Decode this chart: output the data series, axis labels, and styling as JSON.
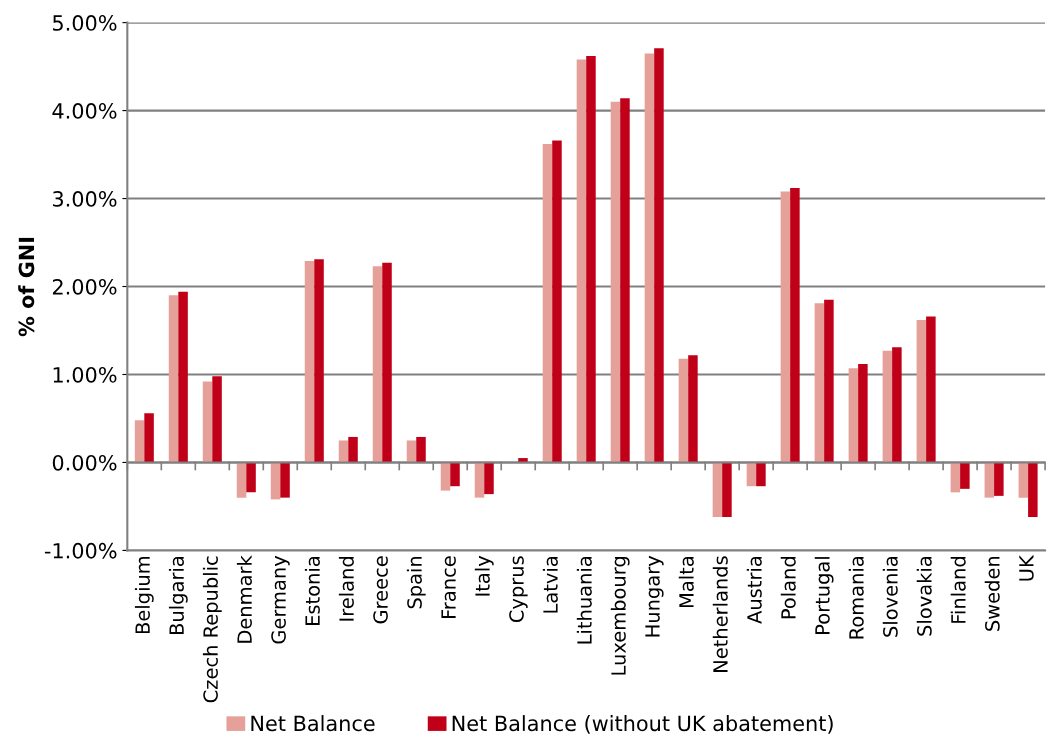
{
  "chart_data": {
    "type": "bar",
    "ylabel": "% of GNI",
    "categories": [
      "Belgium",
      "Bulgaria",
      "Czech Republic",
      "Denmark",
      "Germany",
      "Estonia",
      "Ireland",
      "Greece",
      "Spain",
      "France",
      "Italy",
      "Cyprus",
      "Latvia",
      "Lithuania",
      "Luxembourg",
      "Hungary",
      "Malta",
      "Netherlands",
      "Austria",
      "Poland",
      "Portugal",
      "Romania",
      "Slovenia",
      "Slovakia",
      "Finland",
      "Sweden",
      "UK"
    ],
    "series": [
      {
        "name": "Net Balance",
        "color": "#e6a09a",
        "values": [
          0.48,
          1.9,
          0.92,
          -0.4,
          -0.42,
          2.29,
          0.25,
          2.23,
          0.25,
          -0.32,
          -0.4,
          0.0,
          3.62,
          4.58,
          4.1,
          4.65,
          1.18,
          -0.62,
          -0.27,
          3.08,
          1.81,
          1.07,
          1.27,
          1.62,
          -0.34,
          -0.4,
          -0.4
        ]
      },
      {
        "name": "Net Balance (without UK abatement)",
        "color": "#c00018",
        "values": [
          0.56,
          1.94,
          0.98,
          -0.34,
          -0.4,
          2.31,
          0.29,
          2.27,
          0.29,
          -0.27,
          -0.36,
          0.05,
          3.66,
          4.62,
          4.14,
          4.71,
          1.22,
          -0.62,
          -0.27,
          3.12,
          1.85,
          1.12,
          1.31,
          1.66,
          -0.3,
          -0.38,
          -0.62
        ]
      }
    ],
    "ylim": [
      -1,
      5
    ],
    "yticks": [
      {
        "value": -1,
        "label": "-1.00%"
      },
      {
        "value": 0,
        "label": "0.00%"
      },
      {
        "value": 1,
        "label": "1.00%"
      },
      {
        "value": 2,
        "label": "2.00%"
      },
      {
        "value": 3,
        "label": "3.00%"
      },
      {
        "value": 4,
        "label": "4.00%"
      },
      {
        "value": 5,
        "label": "5.00%"
      }
    ],
    "grid": "y",
    "legend": "bottom"
  }
}
